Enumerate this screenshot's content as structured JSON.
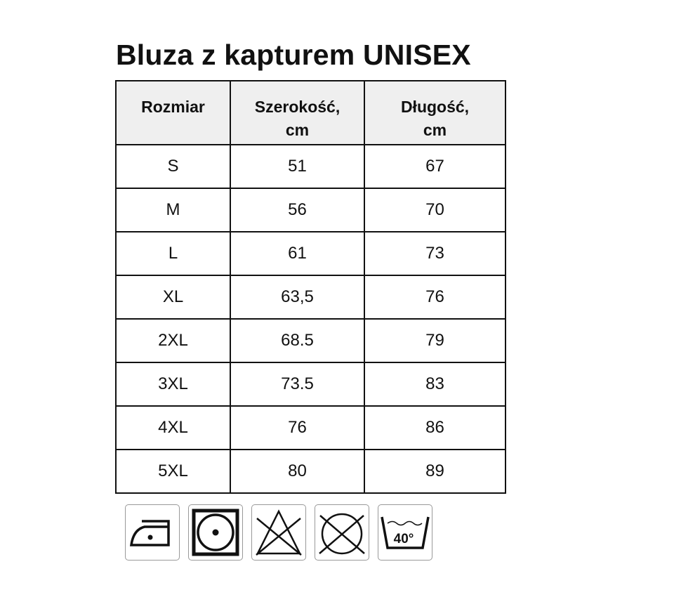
{
  "title": "Bluza z kapturem UNISEX",
  "table": {
    "headers": [
      [
        "Rozmiar",
        ""
      ],
      [
        "Szerokość,",
        "cm"
      ],
      [
        "Długość,",
        "cm"
      ]
    ],
    "rows": [
      [
        "S",
        "51",
        "67"
      ],
      [
        "M",
        "56",
        "70"
      ],
      [
        "L",
        "61",
        "73"
      ],
      [
        "XL",
        "63,5",
        "76"
      ],
      [
        "2XL",
        "68.5",
        "79"
      ],
      [
        "3XL",
        "73.5",
        "83"
      ],
      [
        "4XL",
        "76",
        "86"
      ],
      [
        "5XL",
        "80",
        "89"
      ]
    ]
  },
  "care_icons": [
    {
      "name": "iron-low-temp-icon"
    },
    {
      "name": "tumble-dry-low-icon"
    },
    {
      "name": "do-not-bleach-icon"
    },
    {
      "name": "do-not-dry-clean-icon"
    },
    {
      "name": "wash-40-icon",
      "label": "40°"
    }
  ]
}
